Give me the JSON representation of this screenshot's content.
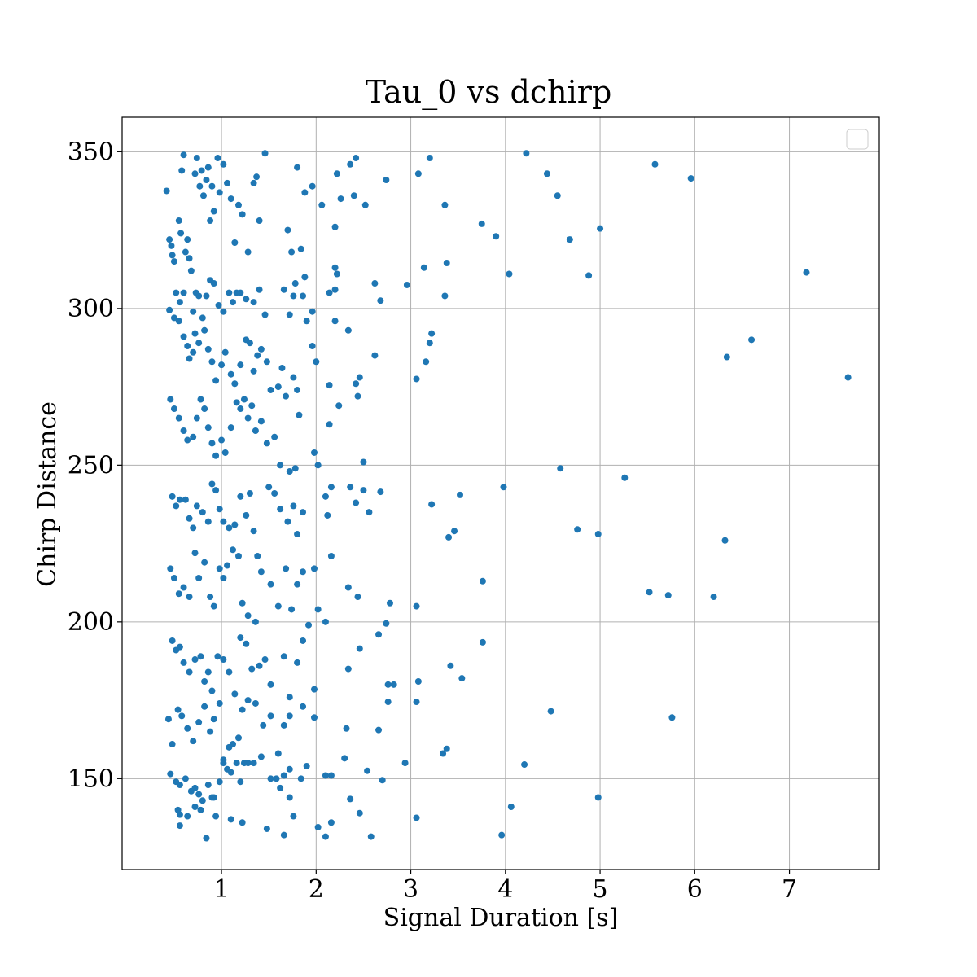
{
  "chart_data": {
    "type": "scatter",
    "title": "Tau_0 vs dchirp",
    "xlabel": "Signal Duration [s]",
    "ylabel": "Chirp Distance",
    "xlim": [
      -0.05,
      7.95
    ],
    "ylim": [
      121,
      361
    ],
    "xticks": [
      1,
      2,
      3,
      4,
      5,
      6,
      7
    ],
    "yticks": [
      150,
      200,
      250,
      300,
      350
    ],
    "grid": true,
    "legend": {
      "placement": "top-right",
      "entries": []
    },
    "marker_color": "#1f77b4",
    "points": [
      [
        0.42,
        337.5
      ],
      [
        0.45,
        322
      ],
      [
        0.47,
        320
      ],
      [
        0.48,
        317
      ],
      [
        0.5,
        315
      ],
      [
        0.55,
        328
      ],
      [
        0.57,
        324
      ],
      [
        0.58,
        344
      ],
      [
        0.6,
        349
      ],
      [
        0.62,
        318
      ],
      [
        0.64,
        322
      ],
      [
        0.66,
        316
      ],
      [
        0.68,
        312
      ],
      [
        0.72,
        343
      ],
      [
        0.74,
        348
      ],
      [
        0.77,
        339
      ],
      [
        0.79,
        344
      ],
      [
        0.81,
        336
      ],
      [
        0.84,
        341
      ],
      [
        0.86,
        345
      ],
      [
        0.88,
        328
      ],
      [
        0.9,
        339
      ],
      [
        0.92,
        331
      ],
      [
        0.96,
        348
      ],
      [
        0.98,
        337
      ],
      [
        1.02,
        346
      ],
      [
        1.06,
        340
      ],
      [
        1.1,
        335
      ],
      [
        1.14,
        321
      ],
      [
        1.18,
        333
      ],
      [
        1.22,
        330
      ],
      [
        1.28,
        318
      ],
      [
        1.34,
        340
      ],
      [
        1.37,
        342
      ],
      [
        1.4,
        328
      ],
      [
        1.46,
        349.5
      ],
      [
        1.7,
        325
      ],
      [
        1.74,
        318
      ],
      [
        1.8,
        345
      ],
      [
        1.84,
        319
      ],
      [
        1.88,
        337
      ],
      [
        1.96,
        339
      ],
      [
        2.06,
        333
      ],
      [
        2.2,
        326
      ],
      [
        2.22,
        343
      ],
      [
        2.26,
        335
      ],
      [
        2.36,
        346
      ],
      [
        2.4,
        336
      ],
      [
        2.42,
        348
      ],
      [
        2.52,
        333
      ],
      [
        2.74,
        341
      ],
      [
        3.08,
        343
      ],
      [
        3.2,
        348
      ],
      [
        3.36,
        333
      ],
      [
        3.75,
        327
      ],
      [
        3.9,
        323
      ],
      [
        4.22,
        349.5
      ],
      [
        4.44,
        343
      ],
      [
        4.55,
        336
      ],
      [
        4.68,
        322
      ],
      [
        5.0,
        325.5
      ],
      [
        5.58,
        346
      ],
      [
        5.96,
        341.5
      ],
      [
        0.52,
        305
      ],
      [
        0.56,
        302
      ],
      [
        0.6,
        305
      ],
      [
        0.7,
        299
      ],
      [
        0.73,
        305
      ],
      [
        0.76,
        304
      ],
      [
        0.84,
        304
      ],
      [
        0.88,
        309
      ],
      [
        0.92,
        308
      ],
      [
        0.97,
        301
      ],
      [
        1.02,
        299
      ],
      [
        1.08,
        305
      ],
      [
        1.12,
        302
      ],
      [
        1.16,
        305
      ],
      [
        1.2,
        305
      ],
      [
        1.26,
        303
      ],
      [
        1.34,
        302
      ],
      [
        1.4,
        306
      ],
      [
        1.46,
        298
      ],
      [
        1.66,
        306
      ],
      [
        1.72,
        298
      ],
      [
        1.76,
        304
      ],
      [
        1.78,
        308
      ],
      [
        1.86,
        304
      ],
      [
        1.88,
        310
      ],
      [
        1.96,
        299
      ],
      [
        2.14,
        305
      ],
      [
        2.2,
        306
      ],
      [
        2.22,
        311
      ],
      [
        2.2,
        313
      ],
      [
        2.62,
        308
      ],
      [
        2.68,
        302.5
      ],
      [
        2.96,
        307.5
      ],
      [
        3.14,
        313
      ],
      [
        3.36,
        304
      ],
      [
        3.38,
        314.5
      ],
      [
        4.04,
        311
      ],
      [
        4.88,
        310.5
      ],
      [
        7.18,
        311.5
      ],
      [
        0.45,
        299.5
      ],
      [
        0.5,
        297
      ],
      [
        0.55,
        296
      ],
      [
        0.6,
        291
      ],
      [
        0.64,
        288
      ],
      [
        0.66,
        284
      ],
      [
        0.7,
        286
      ],
      [
        0.72,
        292
      ],
      [
        0.76,
        289
      ],
      [
        0.8,
        297
      ],
      [
        0.82,
        293
      ],
      [
        0.86,
        287
      ],
      [
        0.9,
        283
      ],
      [
        0.94,
        277
      ],
      [
        1.0,
        282
      ],
      [
        1.04,
        286
      ],
      [
        1.1,
        279
      ],
      [
        1.14,
        276
      ],
      [
        1.2,
        282
      ],
      [
        1.26,
        290
      ],
      [
        1.3,
        289
      ],
      [
        1.34,
        280
      ],
      [
        1.38,
        285
      ],
      [
        1.42,
        287
      ],
      [
        1.48,
        283
      ],
      [
        1.52,
        274
      ],
      [
        1.6,
        275
      ],
      [
        1.64,
        281
      ],
      [
        1.68,
        272
      ],
      [
        1.76,
        278
      ],
      [
        1.8,
        274
      ],
      [
        1.9,
        296
      ],
      [
        1.96,
        288
      ],
      [
        2.0,
        283
      ],
      [
        2.14,
        275.5
      ],
      [
        2.2,
        296
      ],
      [
        2.34,
        293
      ],
      [
        2.42,
        276
      ],
      [
        2.46,
        278
      ],
      [
        2.62,
        285
      ],
      [
        3.06,
        277.5
      ],
      [
        3.16,
        283
      ],
      [
        3.2,
        289
      ],
      [
        3.22,
        292
      ],
      [
        6.34,
        284.5
      ],
      [
        6.6,
        290
      ],
      [
        7.62,
        278
      ],
      [
        0.46,
        271
      ],
      [
        0.5,
        268
      ],
      [
        0.55,
        265
      ],
      [
        0.6,
        261
      ],
      [
        0.64,
        258
      ],
      [
        0.7,
        259
      ],
      [
        0.74,
        265
      ],
      [
        0.78,
        271
      ],
      [
        0.82,
        268
      ],
      [
        0.86,
        262
      ],
      [
        0.9,
        257
      ],
      [
        0.94,
        253
      ],
      [
        1.0,
        258
      ],
      [
        1.04,
        254
      ],
      [
        1.1,
        262
      ],
      [
        1.16,
        270
      ],
      [
        1.2,
        268
      ],
      [
        1.24,
        271
      ],
      [
        1.28,
        265
      ],
      [
        1.32,
        269
      ],
      [
        1.36,
        261
      ],
      [
        1.42,
        264
      ],
      [
        1.48,
        257
      ],
      [
        1.56,
        259
      ],
      [
        1.62,
        250
      ],
      [
        1.72,
        248
      ],
      [
        1.78,
        249
      ],
      [
        1.82,
        266
      ],
      [
        1.98,
        254
      ],
      [
        2.02,
        250
      ],
      [
        2.14,
        263
      ],
      [
        2.24,
        269
      ],
      [
        2.44,
        272
      ],
      [
        2.5,
        251
      ],
      [
        0.48,
        240
      ],
      [
        0.52,
        237
      ],
      [
        0.56,
        239
      ],
      [
        0.62,
        239
      ],
      [
        0.66,
        233
      ],
      [
        0.7,
        230
      ],
      [
        0.74,
        237
      ],
      [
        0.8,
        235
      ],
      [
        0.86,
        232
      ],
      [
        0.9,
        244
      ],
      [
        0.94,
        242
      ],
      [
        0.98,
        236
      ],
      [
        1.02,
        232
      ],
      [
        1.08,
        230
      ],
      [
        1.14,
        231
      ],
      [
        1.2,
        240
      ],
      [
        1.26,
        234
      ],
      [
        1.3,
        241
      ],
      [
        1.34,
        229
      ],
      [
        1.38,
        221
      ],
      [
        1.5,
        243
      ],
      [
        1.56,
        241
      ],
      [
        1.62,
        236
      ],
      [
        1.7,
        232
      ],
      [
        1.76,
        237
      ],
      [
        1.8,
        228
      ],
      [
        1.86,
        235
      ],
      [
        2.1,
        240
      ],
      [
        2.12,
        234
      ],
      [
        2.16,
        243
      ],
      [
        2.36,
        243
      ],
      [
        2.42,
        238
      ],
      [
        2.5,
        242
      ],
      [
        2.56,
        235
      ],
      [
        2.68,
        241.5
      ],
      [
        3.22,
        237.5
      ],
      [
        3.4,
        227
      ],
      [
        3.46,
        229
      ],
      [
        3.52,
        240.5
      ],
      [
        3.98,
        243
      ],
      [
        4.58,
        249
      ],
      [
        4.76,
        229.5
      ],
      [
        4.98,
        228
      ],
      [
        5.26,
        246
      ],
      [
        6.32,
        226
      ],
      [
        0.46,
        217
      ],
      [
        0.5,
        214
      ],
      [
        0.55,
        209
      ],
      [
        0.6,
        211
      ],
      [
        0.66,
        208
      ],
      [
        0.72,
        222
      ],
      [
        0.76,
        214
      ],
      [
        0.82,
        219
      ],
      [
        0.88,
        208
      ],
      [
        0.92,
        205
      ],
      [
        0.98,
        217
      ],
      [
        1.02,
        214
      ],
      [
        1.06,
        218
      ],
      [
        1.12,
        223
      ],
      [
        1.18,
        221
      ],
      [
        1.22,
        206
      ],
      [
        1.28,
        202
      ],
      [
        1.36,
        200
      ],
      [
        1.42,
        216
      ],
      [
        1.52,
        212
      ],
      [
        1.6,
        205
      ],
      [
        1.68,
        217
      ],
      [
        1.74,
        204
      ],
      [
        1.8,
        212
      ],
      [
        1.86,
        216
      ],
      [
        1.98,
        217
      ],
      [
        2.02,
        204
      ],
      [
        2.1,
        200
      ],
      [
        2.16,
        221
      ],
      [
        2.34,
        211
      ],
      [
        2.44,
        208
      ],
      [
        2.74,
        199.5
      ],
      [
        2.78,
        206
      ],
      [
        3.06,
        205
      ],
      [
        3.76,
        213
      ],
      [
        5.52,
        209.5
      ],
      [
        5.72,
        208.5
      ],
      [
        6.2,
        208
      ],
      [
        0.48,
        194
      ],
      [
        0.52,
        191
      ],
      [
        0.56,
        192
      ],
      [
        0.6,
        187
      ],
      [
        0.66,
        184
      ],
      [
        0.72,
        188
      ],
      [
        0.78,
        189
      ],
      [
        0.82,
        181
      ],
      [
        0.86,
        184
      ],
      [
        0.9,
        178
      ],
      [
        0.96,
        189
      ],
      [
        1.02,
        188
      ],
      [
        1.08,
        184
      ],
      [
        1.14,
        177
      ],
      [
        1.2,
        195
      ],
      [
        1.26,
        193
      ],
      [
        1.32,
        185
      ],
      [
        1.4,
        186
      ],
      [
        1.46,
        188
      ],
      [
        1.52,
        180
      ],
      [
        1.66,
        189
      ],
      [
        1.72,
        176
      ],
      [
        1.8,
        187
      ],
      [
        1.86,
        194
      ],
      [
        1.92,
        199
      ],
      [
        1.98,
        178.5
      ],
      [
        2.34,
        185
      ],
      [
        2.46,
        191.5
      ],
      [
        2.66,
        196
      ],
      [
        2.76,
        180
      ],
      [
        2.82,
        180
      ],
      [
        3.08,
        181
      ],
      [
        3.42,
        186
      ],
      [
        3.54,
        182
      ],
      [
        3.76,
        193.5
      ],
      [
        0.44,
        169
      ],
      [
        0.48,
        161
      ],
      [
        0.54,
        172
      ],
      [
        0.58,
        170
      ],
      [
        0.64,
        166
      ],
      [
        0.7,
        162
      ],
      [
        0.76,
        168
      ],
      [
        0.82,
        173
      ],
      [
        0.88,
        165
      ],
      [
        0.92,
        169
      ],
      [
        0.98,
        174
      ],
      [
        1.02,
        156
      ],
      [
        1.08,
        160
      ],
      [
        1.12,
        161
      ],
      [
        1.18,
        163
      ],
      [
        1.22,
        172
      ],
      [
        1.28,
        175
      ],
      [
        1.36,
        174
      ],
      [
        1.44,
        167
      ],
      [
        1.52,
        170
      ],
      [
        1.6,
        158
      ],
      [
        1.66,
        167
      ],
      [
        1.72,
        170
      ],
      [
        1.86,
        173
      ],
      [
        1.98,
        169.5
      ],
      [
        2.32,
        166
      ],
      [
        2.66,
        165.5
      ],
      [
        2.76,
        174.5
      ],
      [
        3.06,
        174.5
      ],
      [
        4.48,
        171.5
      ],
      [
        5.76,
        169.5
      ],
      [
        0.46,
        151.5
      ],
      [
        0.52,
        149
      ],
      [
        0.56,
        148
      ],
      [
        0.62,
        150
      ],
      [
        0.68,
        146
      ],
      [
        0.72,
        147
      ],
      [
        0.76,
        145
      ],
      [
        0.8,
        143
      ],
      [
        0.86,
        148
      ],
      [
        0.92,
        144
      ],
      [
        0.98,
        149
      ],
      [
        1.02,
        155
      ],
      [
        1.06,
        153
      ],
      [
        1.1,
        152
      ],
      [
        1.16,
        155
      ],
      [
        1.2,
        149
      ],
      [
        1.24,
        155
      ],
      [
        1.28,
        155
      ],
      [
        1.34,
        155
      ],
      [
        1.42,
        157
      ],
      [
        1.52,
        150
      ],
      [
        1.58,
        150
      ],
      [
        1.66,
        151
      ],
      [
        1.72,
        153
      ],
      [
        1.84,
        150
      ],
      [
        1.9,
        154
      ],
      [
        2.1,
        151
      ],
      [
        2.16,
        151
      ],
      [
        2.3,
        156.5
      ],
      [
        2.54,
        152.5
      ],
      [
        2.7,
        149.5
      ],
      [
        2.94,
        155
      ],
      [
        3.34,
        158
      ],
      [
        3.38,
        159.5
      ],
      [
        4.2,
        154.5
      ],
      [
        0.54,
        140
      ],
      [
        0.56,
        138.5
      ],
      [
        0.56,
        135
      ],
      [
        0.64,
        138
      ],
      [
        0.72,
        141
      ],
      [
        0.78,
        140
      ],
      [
        0.84,
        131
      ],
      [
        0.9,
        144
      ],
      [
        0.94,
        138
      ],
      [
        1.1,
        137
      ],
      [
        1.22,
        136
      ],
      [
        1.48,
        134
      ],
      [
        1.66,
        132
      ],
      [
        1.76,
        138
      ],
      [
        2.02,
        134.5
      ],
      [
        2.1,
        131.5
      ],
      [
        2.16,
        136
      ],
      [
        2.46,
        139
      ],
      [
        2.58,
        131.5
      ],
      [
        3.06,
        137.5
      ],
      [
        3.96,
        132
      ],
      [
        4.06,
        141
      ],
      [
        4.98,
        144
      ],
      [
        2.36,
        143.5
      ],
      [
        1.72,
        144
      ],
      [
        1.62,
        147
      ]
    ]
  }
}
